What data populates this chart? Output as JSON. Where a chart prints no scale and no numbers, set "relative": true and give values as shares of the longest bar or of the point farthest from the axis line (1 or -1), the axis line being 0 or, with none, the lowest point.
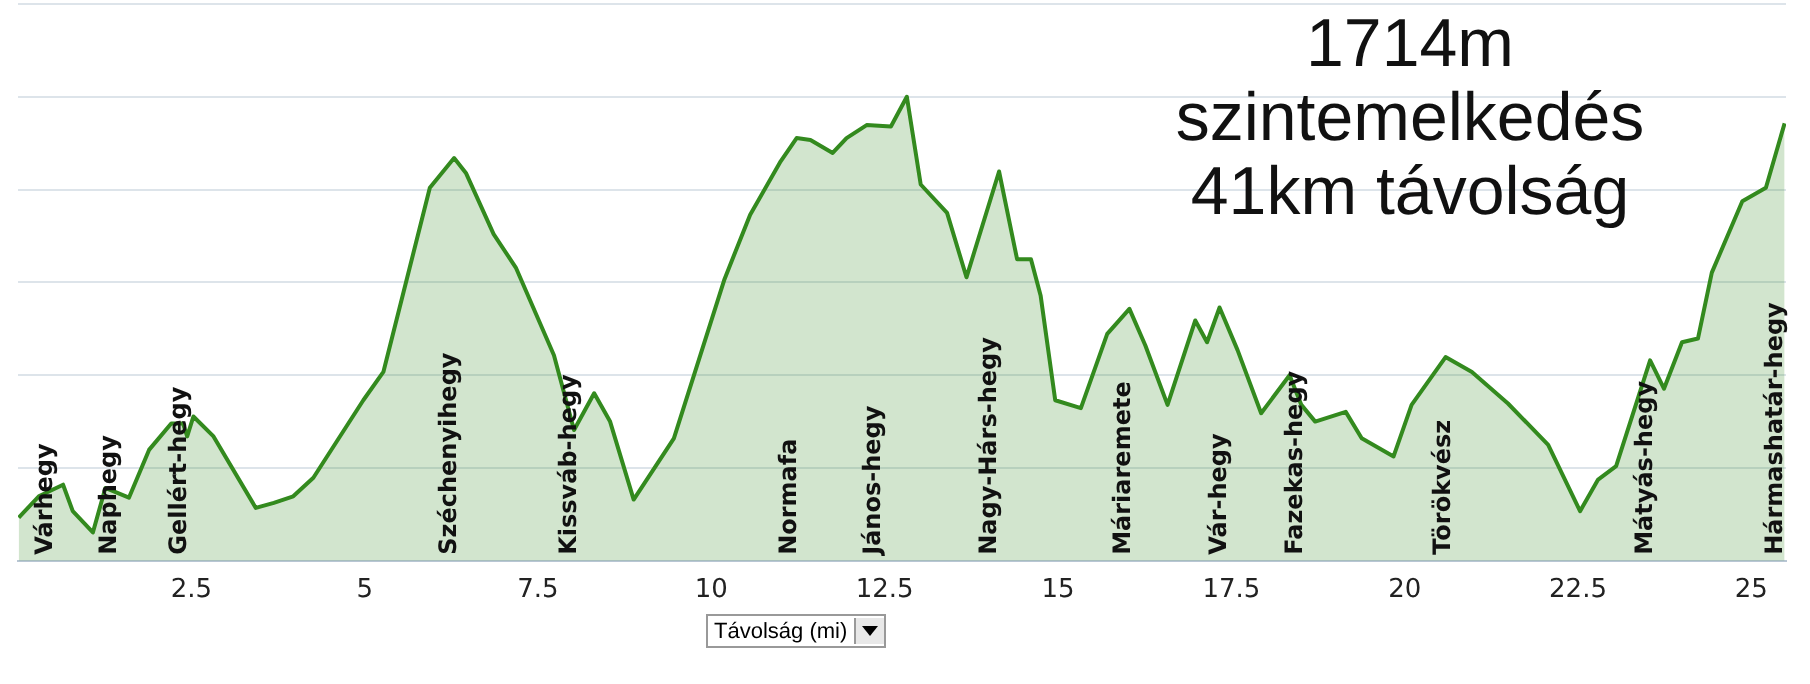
{
  "chart_data": {
    "type": "area",
    "relative": true,
    "xlabel": "Távolság (mi)",
    "color": "#338a1e",
    "grid": "y",
    "xlim": [
      0,
      25.5
    ],
    "xticks": [
      2.5,
      5,
      7.5,
      10,
      12.5,
      15,
      17.5,
      20,
      22.5,
      25
    ],
    "x": [
      0.01,
      0.3,
      0.65,
      0.79,
      1.08,
      1.26,
      1.6,
      1.89,
      2.21,
      2.38,
      2.44,
      2.53,
      2.82,
      3.43,
      3.69,
      3.97,
      4.26,
      4.98,
      5.27,
      5.65,
      5.94,
      6.29,
      6.46,
      6.86,
      7.18,
      7.73,
      8.02,
      8.31,
      8.54,
      8.88,
      9.46,
      10.19,
      10.56,
      11.0,
      11.23,
      11.43,
      11.75,
      11.95,
      12.24,
      12.59,
      12.82,
      13.02,
      13.4,
      13.68,
      14.15,
      14.41,
      14.61,
      14.75,
      14.96,
      15.33,
      15.71,
      16.03,
      16.26,
      16.58,
      16.98,
      17.15,
      17.33,
      17.59,
      17.93,
      18.34,
      18.51,
      18.71,
      19.15,
      19.38,
      19.84,
      20.1,
      20.59,
      20.97,
      21.49,
      22.07,
      22.53,
      22.79,
      23.05,
      23.54,
      23.74,
      24.0,
      24.23,
      24.43,
      24.87,
      25.21,
      25.48
    ],
    "values": [
      0.093,
      0.139,
      0.164,
      0.107,
      0.061,
      0.157,
      0.136,
      0.239,
      0.296,
      0.296,
      0.268,
      0.311,
      0.268,
      0.114,
      0.125,
      0.139,
      0.179,
      0.346,
      0.407,
      0.632,
      0.804,
      0.868,
      0.836,
      0.704,
      0.632,
      0.443,
      0.282,
      0.361,
      0.3,
      0.132,
      0.264,
      0.607,
      0.746,
      0.861,
      0.911,
      0.907,
      0.879,
      0.911,
      0.939,
      0.936,
      1.0,
      0.811,
      0.75,
      0.611,
      0.839,
      0.65,
      0.65,
      0.571,
      0.346,
      0.329,
      0.489,
      0.543,
      0.464,
      0.336,
      0.518,
      0.471,
      0.546,
      0.454,
      0.318,
      0.4,
      0.336,
      0.3,
      0.321,
      0.264,
      0.225,
      0.336,
      0.439,
      0.407,
      0.339,
      0.25,
      0.107,
      0.175,
      0.204,
      0.432,
      0.371,
      0.471,
      0.479,
      0.621,
      0.775,
      0.804,
      0.943
    ],
    "annotations": [
      "1714m\nszintemelkedés\n41km távolság",
      "Várhegy",
      "Naphegy",
      "Gellért-hegy",
      "Széchenyihegy",
      "Kissváb-hegy",
      "Normafa",
      "János-hegy",
      "Nagy-Hárs-hegy",
      "Máriaremete",
      "Vár-hegy",
      "Fazekas-hegy",
      "Törökvész",
      "Mátyás-hegy",
      "Hármashatár-hegy"
    ]
  }
}
